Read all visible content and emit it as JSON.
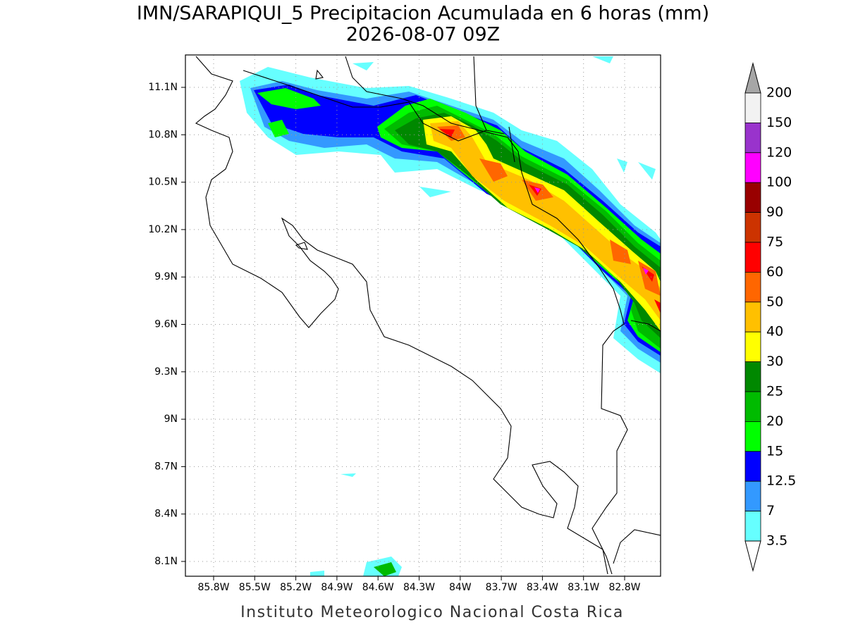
{
  "title": "IMN/SARAPIQUI_5 Precipitacion Acumulada en 6 horas (mm)",
  "subtitle": "2026-08-07 09Z",
  "lat_labels": [
    "11.1N",
    "10.8N",
    "10.5N",
    "10.2N",
    "9.9N",
    "9.6N",
    "9.3N",
    "9N",
    "8.7N",
    "8.4N",
    "8.1N"
  ],
  "lon_labels": [
    "85.8W",
    "85.5W",
    "85.2W",
    "84.9W",
    "84.6W",
    "84.3W",
    "84W",
    "83.7W",
    "83.4W",
    "83.1W",
    "82.8W"
  ],
  "colorbar": {
    "labels": [
      "200",
      "150",
      "120",
      "100",
      "90",
      "75",
      "60",
      "50",
      "40",
      "30",
      "25",
      "20",
      "15",
      "12.5",
      "7",
      "3.5"
    ],
    "colors": [
      "#f2f2f2",
      "#9933cc",
      "#ff00ff",
      "#990000",
      "#cc3300",
      "#ff0000",
      "#ff6600",
      "#ffc000",
      "#ffff00",
      "#008800",
      "#00bb00",
      "#00ff00",
      "#0000ff",
      "#3399ff",
      "#66ffff"
    ],
    "over_color": "#a6a6a6",
    "under_color": "#ffffff"
  },
  "footer": "Instituto Meteorologico Nacional Costa Rica"
}
